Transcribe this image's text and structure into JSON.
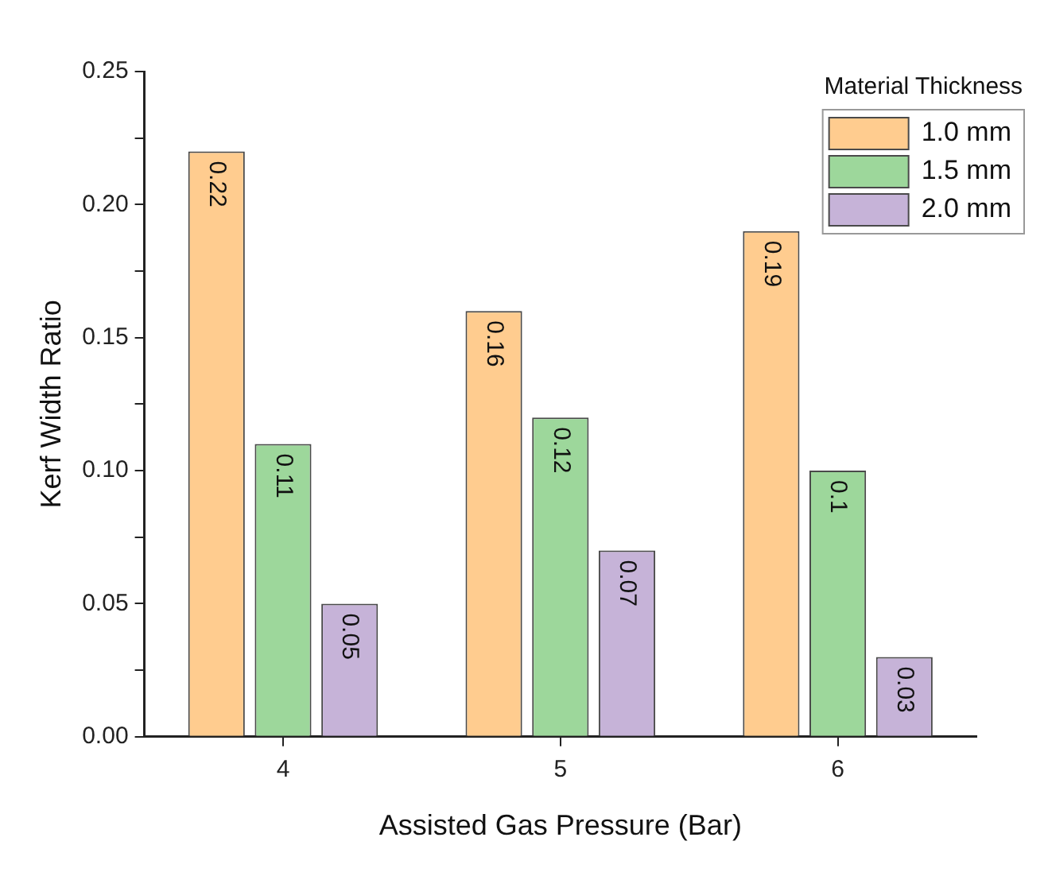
{
  "chart_data": {
    "type": "bar",
    "xlabel": "Assisted Gas Pressure (Bar)",
    "ylabel": "Kerf Width Ratio",
    "legend_title": "Material Thickness",
    "categories": [
      "4",
      "5",
      "6"
    ],
    "series": [
      {
        "name": "1.0 mm",
        "color": "#ffcc8f",
        "values": [
          0.22,
          0.16,
          0.19
        ]
      },
      {
        "name": "1.5 mm",
        "color": "#9dd79b",
        "values": [
          0.11,
          0.12,
          0.1
        ]
      },
      {
        "name": "2.0 mm",
        "color": "#c6b3d8",
        "values": [
          0.05,
          0.07,
          0.03
        ]
      }
    ],
    "ylim": [
      0,
      0.25
    ],
    "yticks": [
      {
        "value": 0,
        "label": "0.00"
      },
      {
        "value": 0.025,
        "label": null
      },
      {
        "value": 0.05,
        "label": "0.05"
      },
      {
        "value": 0.075,
        "label": null
      },
      {
        "value": 0.1,
        "label": "0.10"
      },
      {
        "value": 0.125,
        "label": null
      },
      {
        "value": 0.15,
        "label": "0.15"
      },
      {
        "value": 0.175,
        "label": null
      },
      {
        "value": 0.2,
        "label": "0.20"
      },
      {
        "value": 0.225,
        "label": null
      },
      {
        "value": 0.25,
        "label": "0.25"
      }
    ],
    "grid": false,
    "legend": "top right",
    "data_labels": true
  }
}
